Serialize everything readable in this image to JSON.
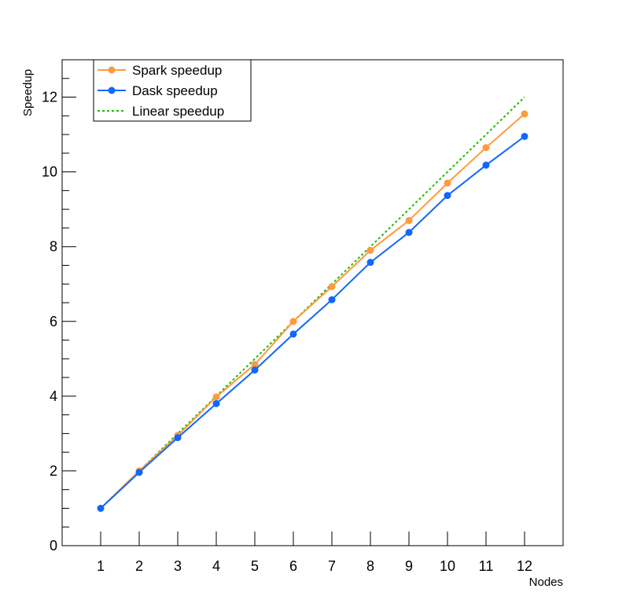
{
  "chart_data": {
    "type": "line",
    "title": "",
    "xlabel": "Nodes",
    "ylabel": "Speedup",
    "xlim": [
      0,
      13
    ],
    "ylim": [
      0,
      13
    ],
    "x_ticks": [
      1,
      2,
      3,
      4,
      5,
      6,
      7,
      8,
      9,
      10,
      11,
      12
    ],
    "y_ticks": [
      0,
      2,
      4,
      6,
      8,
      10,
      12
    ],
    "grid": false,
    "legend_position": "top-left",
    "x": [
      1,
      2,
      3,
      4,
      5,
      6,
      7,
      8,
      9,
      10,
      11,
      12
    ],
    "series": [
      {
        "name": "Spark speedup",
        "color": "#ff9a3f",
        "style": "solid-markers",
        "values": [
          1.0,
          2.0,
          2.95,
          3.98,
          4.85,
          6.0,
          6.93,
          7.9,
          8.7,
          9.7,
          10.65,
          11.55
        ]
      },
      {
        "name": "Dask speedup",
        "color": "#1166ff",
        "style": "solid-markers",
        "values": [
          1.0,
          1.96,
          2.89,
          3.8,
          4.7,
          5.66,
          6.58,
          7.58,
          8.38,
          9.37,
          10.18,
          10.95
        ]
      },
      {
        "name": "Linear speedup",
        "color": "#22bb00",
        "style": "dotted",
        "values": [
          1,
          2,
          3,
          4,
          5,
          6,
          7,
          8,
          9,
          10,
          11,
          12
        ]
      }
    ]
  }
}
